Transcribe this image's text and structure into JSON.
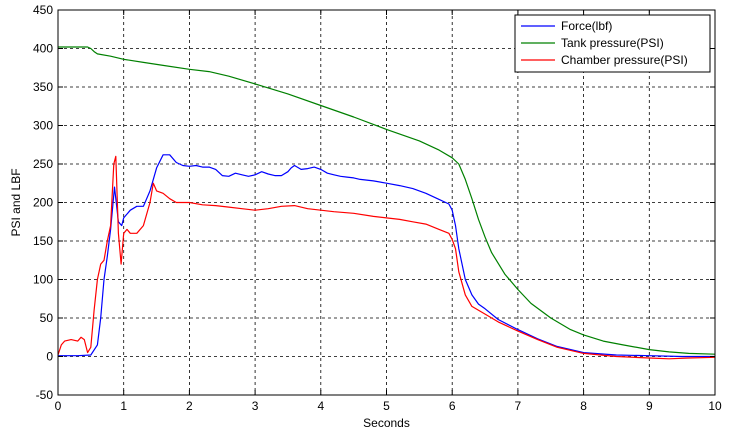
{
  "chart_data": {
    "type": "line",
    "xlabel": "Seconds",
    "ylabel": "PSI and LBF",
    "xlim": [
      0,
      10
    ],
    "ylim": [
      -50,
      450
    ],
    "xticks": [
      0,
      1,
      2,
      3,
      4,
      5,
      6,
      7,
      8,
      9,
      10
    ],
    "yticks": [
      -50,
      0,
      50,
      100,
      150,
      200,
      250,
      300,
      350,
      400,
      450
    ],
    "grid": true,
    "legend": "top-right",
    "series": [
      {
        "name": "Force(lbf)",
        "color": "#0000ff",
        "points": [
          [
            0,
            1
          ],
          [
            0.3,
            1
          ],
          [
            0.5,
            2
          ],
          [
            0.6,
            15
          ],
          [
            0.65,
            50
          ],
          [
            0.7,
            100
          ],
          [
            0.75,
            130
          ],
          [
            0.8,
            165
          ],
          [
            0.86,
            220
          ],
          [
            0.92,
            175
          ],
          [
            0.97,
            170
          ],
          [
            1.0,
            180
          ],
          [
            1.1,
            190
          ],
          [
            1.2,
            195
          ],
          [
            1.3,
            195
          ],
          [
            1.4,
            215
          ],
          [
            1.5,
            245
          ],
          [
            1.6,
            262
          ],
          [
            1.7,
            262
          ],
          [
            1.8,
            252
          ],
          [
            1.9,
            248
          ],
          [
            2.0,
            247
          ],
          [
            2.1,
            248
          ],
          [
            2.2,
            246
          ],
          [
            2.3,
            246
          ],
          [
            2.4,
            243
          ],
          [
            2.5,
            235
          ],
          [
            2.6,
            234
          ],
          [
            2.7,
            238
          ],
          [
            2.8,
            236
          ],
          [
            2.9,
            234
          ],
          [
            3.0,
            236
          ],
          [
            3.1,
            240
          ],
          [
            3.2,
            237
          ],
          [
            3.3,
            235
          ],
          [
            3.4,
            235
          ],
          [
            3.5,
            240
          ],
          [
            3.55,
            245
          ],
          [
            3.6,
            248
          ],
          [
            3.7,
            243
          ],
          [
            3.8,
            244
          ],
          [
            3.9,
            246
          ],
          [
            4.0,
            243
          ],
          [
            4.1,
            238
          ],
          [
            4.2,
            236
          ],
          [
            4.3,
            234
          ],
          [
            4.4,
            233
          ],
          [
            4.5,
            232
          ],
          [
            4.6,
            230
          ],
          [
            4.8,
            228
          ],
          [
            5.0,
            225
          ],
          [
            5.2,
            222
          ],
          [
            5.4,
            218
          ],
          [
            5.6,
            212
          ],
          [
            5.8,
            204
          ],
          [
            5.95,
            198
          ],
          [
            6.0,
            190
          ],
          [
            6.05,
            170
          ],
          [
            6.1,
            140
          ],
          [
            6.2,
            100
          ],
          [
            6.3,
            80
          ],
          [
            6.4,
            68
          ],
          [
            6.5,
            62
          ],
          [
            6.7,
            48
          ],
          [
            7.0,
            35
          ],
          [
            7.3,
            23
          ],
          [
            7.6,
            13
          ],
          [
            8.0,
            5
          ],
          [
            8.5,
            2
          ],
          [
            9.0,
            1
          ],
          [
            9.5,
            0
          ],
          [
            10,
            0
          ]
        ]
      },
      {
        "name": "Tank pressure(PSI)",
        "color": "#008000",
        "points": [
          [
            0,
            402
          ],
          [
            0.45,
            402
          ],
          [
            0.5,
            400
          ],
          [
            0.55,
            396
          ],
          [
            0.6,
            393
          ],
          [
            0.8,
            390
          ],
          [
            1.0,
            386
          ],
          [
            1.3,
            382
          ],
          [
            1.6,
            378
          ],
          [
            2.0,
            373
          ],
          [
            2.3,
            370
          ],
          [
            2.6,
            364
          ],
          [
            3.0,
            354
          ],
          [
            3.5,
            341
          ],
          [
            4.0,
            326
          ],
          [
            4.5,
            311
          ],
          [
            5.0,
            295
          ],
          [
            5.5,
            280
          ],
          [
            5.8,
            268
          ],
          [
            6.0,
            258
          ],
          [
            6.1,
            250
          ],
          [
            6.2,
            230
          ],
          [
            6.3,
            205
          ],
          [
            6.4,
            178
          ],
          [
            6.5,
            155
          ],
          [
            6.6,
            135
          ],
          [
            6.8,
            107
          ],
          [
            7.0,
            87
          ],
          [
            7.2,
            69
          ],
          [
            7.5,
            50
          ],
          [
            7.8,
            35
          ],
          [
            8.0,
            28
          ],
          [
            8.3,
            20
          ],
          [
            8.6,
            15
          ],
          [
            9.0,
            9
          ],
          [
            9.3,
            6
          ],
          [
            9.6,
            4
          ],
          [
            10,
            3
          ]
        ]
      },
      {
        "name": "Chamber pressure(PSI)",
        "color": "#ff0000",
        "points": [
          [
            0,
            2
          ],
          [
            0.05,
            15
          ],
          [
            0.1,
            20
          ],
          [
            0.2,
            22
          ],
          [
            0.3,
            20
          ],
          [
            0.35,
            25
          ],
          [
            0.4,
            22
          ],
          [
            0.45,
            5
          ],
          [
            0.5,
            12
          ],
          [
            0.55,
            60
          ],
          [
            0.6,
            100
          ],
          [
            0.65,
            120
          ],
          [
            0.7,
            125
          ],
          [
            0.75,
            150
          ],
          [
            0.8,
            170
          ],
          [
            0.85,
            250
          ],
          [
            0.88,
            260
          ],
          [
            0.92,
            160
          ],
          [
            0.96,
            120
          ],
          [
            1.0,
            160
          ],
          [
            1.05,
            165
          ],
          [
            1.1,
            160
          ],
          [
            1.2,
            160
          ],
          [
            1.3,
            170
          ],
          [
            1.4,
            200
          ],
          [
            1.45,
            225
          ],
          [
            1.5,
            215
          ],
          [
            1.6,
            212
          ],
          [
            1.7,
            205
          ],
          [
            1.8,
            200
          ],
          [
            2.0,
            200
          ],
          [
            2.2,
            197
          ],
          [
            2.4,
            196
          ],
          [
            2.6,
            194
          ],
          [
            2.8,
            192
          ],
          [
            3.0,
            190
          ],
          [
            3.2,
            192
          ],
          [
            3.4,
            195
          ],
          [
            3.6,
            196
          ],
          [
            3.8,
            192
          ],
          [
            4.0,
            190
          ],
          [
            4.2,
            188
          ],
          [
            4.5,
            186
          ],
          [
            4.8,
            182
          ],
          [
            5.0,
            180
          ],
          [
            5.2,
            178
          ],
          [
            5.4,
            175
          ],
          [
            5.6,
            172
          ],
          [
            5.8,
            165
          ],
          [
            5.95,
            160
          ],
          [
            6.0,
            152
          ],
          [
            6.05,
            140
          ],
          [
            6.1,
            110
          ],
          [
            6.2,
            80
          ],
          [
            6.3,
            65
          ],
          [
            6.5,
            55
          ],
          [
            6.7,
            45
          ],
          [
            7.0,
            33
          ],
          [
            7.3,
            22
          ],
          [
            7.6,
            12
          ],
          [
            8.0,
            4
          ],
          [
            8.5,
            0
          ],
          [
            9.0,
            -2
          ],
          [
            9.3,
            -3
          ],
          [
            9.6,
            -2
          ],
          [
            10,
            -1
          ]
        ]
      }
    ]
  }
}
